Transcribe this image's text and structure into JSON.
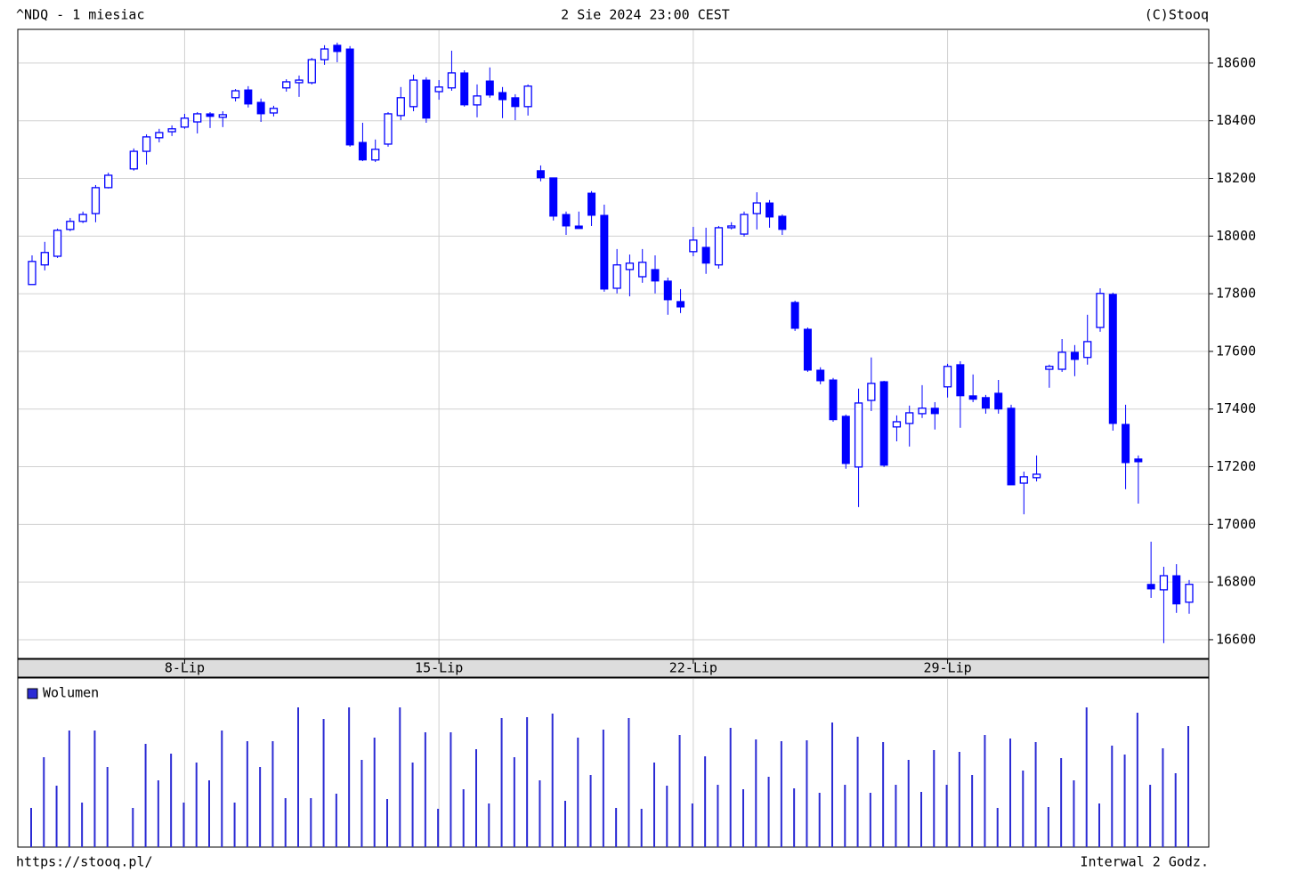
{
  "chart_data": {
    "type": "candlestick",
    "title": "^NDQ - 1 miesiac",
    "subtitle": "2 Sie 2024 23:00 CEST",
    "source": "(C)Stooq",
    "footer_left": "https://stooq.pl/",
    "footer_right": "Interwal 2 Godz.",
    "color": "#0000ff",
    "grid": true,
    "categories": [
      null,
      null,
      null,
      null,
      null,
      null,
      null,
      null,
      null,
      null,
      null,
      null,
      "8-Lip",
      null,
      null,
      null,
      null,
      null,
      null,
      null,
      null,
      null,
      null,
      null,
      null,
      null,
      null,
      null,
      null,
      null,
      null,
      null,
      "15-Lip",
      null,
      null,
      null,
      null,
      null,
      null,
      null,
      null,
      null,
      null,
      null,
      null,
      null,
      null,
      null,
      null,
      null,
      null,
      null,
      "22-Lip",
      null,
      null,
      null,
      null,
      null,
      null,
      null,
      null,
      null,
      null,
      null,
      null,
      null,
      null,
      null,
      null,
      null,
      null,
      null,
      "29-Lip",
      null,
      null,
      null,
      null,
      null,
      null,
      null,
      null,
      null,
      null,
      null,
      null,
      null,
      null,
      null,
      null,
      null,
      null,
      null
    ],
    "open": [
      17832,
      17900,
      17930,
      18023,
      18051,
      18078,
      18168,
      null,
      18233,
      18294,
      18341,
      18362,
      18378,
      18396,
      18424,
      18412,
      18480,
      18507,
      18464,
      18427,
      18514,
      18532,
      18532,
      18612,
      18662,
      18649,
      18325,
      18264,
      18319,
      18418,
      18449,
      18541,
      18501,
      18514,
      18566,
      18455,
      18538,
      18498,
      18480,
      18449,
      18227,
      18202,
      18075,
      18035,
      18149,
      18072,
      17819,
      17884,
      17859,
      17884,
      17844,
      17773,
      17946,
      17961,
      17900,
      18029,
      18007,
      18078,
      18115,
      18069,
      17770,
      17677,
      17535,
      17501,
      17375,
      17199,
      17430,
      17495,
      17338,
      17350,
      17384,
      17403,
      17477,
      17554,
      17446,
      17440,
      17455,
      17403,
      17143,
      17162,
      17538,
      17538,
      17597,
      17579,
      17683,
      17798,
      17347,
      17227,
      16792,
      16773,
      16822,
      16730
    ],
    "high": [
      17933,
      17980,
      18026,
      18063,
      18085,
      18177,
      18220,
      null,
      18304,
      18353,
      18372,
      18384,
      18424,
      18430,
      18430,
      18433,
      18510,
      18520,
      18477,
      18452,
      18544,
      18557,
      18618,
      18662,
      18671,
      18659,
      18393,
      18335,
      18430,
      18517,
      18560,
      18551,
      18541,
      18643,
      18575,
      18526,
      18585,
      18517,
      18492,
      18526,
      18245,
      18202,
      18085,
      18085,
      18156,
      18109,
      17955,
      17936,
      17955,
      17933,
      17856,
      17816,
      18032,
      18029,
      18035,
      18048,
      18085,
      18152,
      18125,
      18075,
      17776,
      17683,
      17545,
      17508,
      17381,
      17471,
      17579,
      17498,
      17378,
      17412,
      17483,
      17424,
      17557,
      17566,
      17520,
      17449,
      17501,
      17415,
      17183,
      17239,
      17554,
      17643,
      17622,
      17727,
      17819,
      17804,
      17415,
      17239,
      16940,
      16853,
      16862,
      16807
    ],
    "low": [
      17832,
      17881,
      17924,
      18017,
      18045,
      18048,
      18165,
      null,
      18227,
      18248,
      18325,
      18347,
      18372,
      18356,
      18375,
      18378,
      18467,
      18446,
      18396,
      18415,
      18501,
      18483,
      18526,
      18594,
      18603,
      18310,
      18260,
      18257,
      18310,
      18402,
      18433,
      18393,
      18473,
      18504,
      18449,
      18412,
      18480,
      18409,
      18402,
      18418,
      18190,
      18054,
      18004,
      18026,
      18035,
      17807,
      17801,
      17791,
      17838,
      17801,
      17727,
      17733,
      17930,
      17869,
      17887,
      18023,
      17998,
      18023,
      18029,
      18004,
      17671,
      17529,
      17486,
      17356,
      17193,
      17060,
      17393,
      17199,
      17288,
      17270,
      17369,
      17329,
      17440,
      17335,
      17424,
      17384,
      17384,
      17137,
      17035,
      17149,
      17474,
      17529,
      17514,
      17554,
      17668,
      17325,
      17122,
      17072,
      16745,
      16588,
      16693,
      16690
    ],
    "close": [
      17912,
      17943,
      18020,
      18051,
      18075,
      18168,
      18211,
      null,
      18294,
      18344,
      18359,
      18372,
      18409,
      18424,
      18415,
      18421,
      18504,
      18458,
      18424,
      18443,
      18535,
      18541,
      18612,
      18649,
      18640,
      18316,
      18264,
      18301,
      18424,
      18480,
      18541,
      18409,
      18517,
      18566,
      18455,
      18486,
      18489,
      18473,
      18449,
      18520,
      18202,
      18069,
      18035,
      18026,
      18072,
      17816,
      17900,
      17906,
      17909,
      17844,
      17779,
      17754,
      17986,
      17906,
      18029,
      18035,
      18075,
      18115,
      18066,
      18023,
      17680,
      17535,
      17498,
      17363,
      17211,
      17421,
      17489,
      17205,
      17356,
      17387,
      17403,
      17384,
      17548,
      17446,
      17434,
      17403,
      17400,
      17137,
      17165,
      17174,
      17548,
      17597,
      17572,
      17634,
      17801,
      17350,
      17214,
      17217,
      16776,
      16822,
      16724,
      16792
    ],
    "ylim": [
      16535,
      18717
    ],
    "yticks": [
      16600,
      16800,
      17000,
      17200,
      17400,
      17600,
      17800,
      18000,
      18200,
      18400,
      18600
    ],
    "volume_name": "Wolumen",
    "volume_color": "#2b2bd4",
    "volume": [
      44,
      101,
      69,
      131,
      50,
      131,
      90,
      null,
      44,
      116,
      75,
      105,
      50,
      95,
      75,
      131,
      50,
      119,
      90,
      119,
      55,
      157,
      55,
      144,
      60,
      157,
      98,
      123,
      54,
      157,
      95,
      129,
      43,
      129,
      65,
      110,
      49,
      145,
      101,
      146,
      75,
      150,
      52,
      123,
      81,
      132,
      44,
      145,
      43,
      95,
      69,
      126,
      49,
      102,
      70,
      134,
      65,
      121,
      79,
      119,
      66,
      120,
      61,
      140,
      70,
      124,
      61,
      118,
      70,
      98,
      62,
      109,
      70,
      107,
      81,
      126,
      44,
      122,
      86,
      118,
      45,
      100,
      75,
      157,
      49,
      114,
      104,
      151,
      70,
      111,
      83,
      136
    ],
    "volume_ylim": [
      0,
      190
    ]
  }
}
